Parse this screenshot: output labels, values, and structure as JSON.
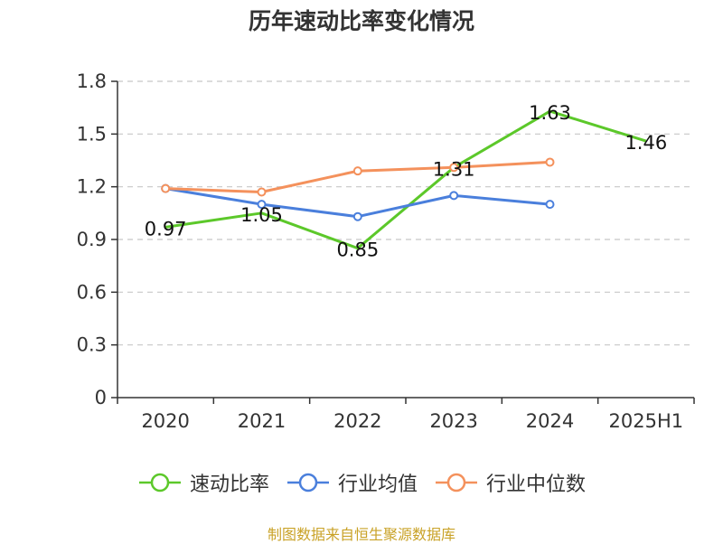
{
  "chart_data": {
    "type": "line",
    "title": "历年速动比率变化情况",
    "categories": [
      "2020",
      "2021",
      "2022",
      "2023",
      "2024",
      "2025H1"
    ],
    "ylim": [
      0,
      1.8
    ],
    "yticks": [
      "0",
      "0.3",
      "0.6",
      "0.9",
      "1.2",
      "1.5",
      "1.8"
    ],
    "grid": true,
    "legend_position": "bottom",
    "series": [
      {
        "name": "速动比率",
        "color": "#5cc82a",
        "values": [
          0.97,
          1.05,
          0.85,
          1.31,
          1.63,
          1.46
        ],
        "labels": [
          "0.97",
          "1.05",
          "0.85",
          "1.31",
          "1.63",
          "1.46"
        ]
      },
      {
        "name": "行业均值",
        "color": "#4a7fdc",
        "values": [
          1.19,
          1.1,
          1.03,
          1.15,
          1.1,
          null
        ]
      },
      {
        "name": "行业中位数",
        "color": "#f4915c",
        "values": [
          1.19,
          1.17,
          1.29,
          1.31,
          1.34,
          null
        ]
      }
    ]
  },
  "source": "制图数据来自恒生聚源数据库"
}
